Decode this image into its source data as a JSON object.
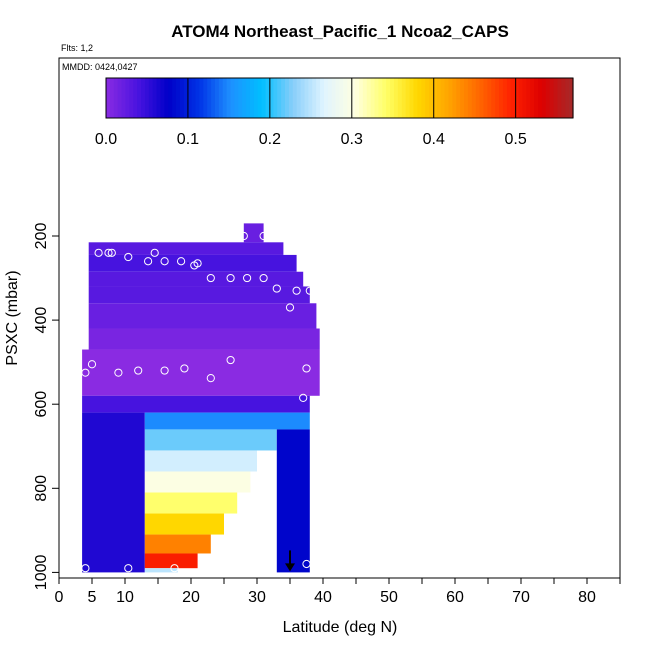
{
  "chart_data": {
    "type": "heatmap",
    "title": "ATOM4 Northeast_Pacific_1 Ncoa2_CAPS",
    "subtitle_flights": "Flts: 1,2",
    "subtitle_dates": "MMDD: 0424,0427",
    "xlabel": "Latitude (deg N)",
    "ylabel": "PSXC (mbar)",
    "xlim": [
      0,
      85
    ],
    "ylim": [
      1000,
      0
    ],
    "x_ticks": [
      0,
      5,
      10,
      20,
      30,
      40,
      50,
      60,
      70,
      80
    ],
    "y_ticks": [
      200,
      400,
      600,
      800,
      1000
    ],
    "colorbar": {
      "range": [
        0,
        0.57
      ],
      "ticks": [
        0.0,
        0.1,
        0.2,
        0.3,
        0.4,
        0.5
      ],
      "tick_labels": [
        "0.0",
        "0.1",
        "0.2",
        "0.3",
        "0.4",
        "0.5"
      ],
      "colors": [
        "#8a2be2",
        "#4b14e0",
        "#0000c8",
        "#0033e6",
        "#1e90ff",
        "#00bfff",
        "#87cefa",
        "#e0f4ff",
        "#ffffe0",
        "#ffff66",
        "#ffd700",
        "#ffa500",
        "#ff6600",
        "#ff2200",
        "#dd0000",
        "#a52a2a"
      ]
    },
    "cells": [
      {
        "lat0": 28,
        "lat1": 31,
        "p0": 170,
        "p1": 215,
        "v": 0.02
      },
      {
        "lat0": 4.5,
        "lat1": 34,
        "p0": 215,
        "p1": 245,
        "v": 0.03
      },
      {
        "lat0": 4.5,
        "lat1": 36,
        "p0": 245,
        "p1": 285,
        "v": 0.04
      },
      {
        "lat0": 4.5,
        "lat1": 37,
        "p0": 285,
        "p1": 320,
        "v": 0.03
      },
      {
        "lat0": 4.5,
        "lat1": 38,
        "p0": 320,
        "p1": 360,
        "v": 0.03
      },
      {
        "lat0": 4.5,
        "lat1": 39,
        "p0": 360,
        "p1": 420,
        "v": 0.02
      },
      {
        "lat0": 4.5,
        "lat1": 39.5,
        "p0": 420,
        "p1": 470,
        "v": 0.01
      },
      {
        "lat0": 3.5,
        "lat1": 39.5,
        "p0": 470,
        "p1": 580,
        "v": 0.0
      },
      {
        "lat0": 3.5,
        "lat1": 38,
        "p0": 580,
        "p1": 620,
        "v": 0.04
      },
      {
        "lat0": 3.5,
        "lat1": 13,
        "p0": 620,
        "p1": 1000,
        "v": 0.06
      },
      {
        "lat0": 13,
        "lat1": 38,
        "p0": 620,
        "p1": 660,
        "v": 0.15
      },
      {
        "lat0": 13,
        "lat1": 33,
        "p0": 660,
        "p1": 710,
        "v": 0.22
      },
      {
        "lat0": 13,
        "lat1": 30,
        "p0": 710,
        "p1": 760,
        "v": 0.26
      },
      {
        "lat0": 13,
        "lat1": 29,
        "p0": 760,
        "p1": 810,
        "v": 0.3
      },
      {
        "lat0": 13,
        "lat1": 27,
        "p0": 810,
        "p1": 860,
        "v": 0.34
      },
      {
        "lat0": 13,
        "lat1": 25,
        "p0": 860,
        "p1": 910,
        "v": 0.38
      },
      {
        "lat0": 13,
        "lat1": 23,
        "p0": 910,
        "p1": 955,
        "v": 0.44
      },
      {
        "lat0": 13,
        "lat1": 21,
        "p0": 955,
        "p1": 990,
        "v": 0.5
      },
      {
        "lat0": 13,
        "lat1": 18,
        "p0": 990,
        "p1": 1000,
        "v": 0.25
      },
      {
        "lat0": 33,
        "lat1": 38,
        "p0": 660,
        "p1": 1000,
        "v": 0.08
      }
    ],
    "points": [
      {
        "lat": 28,
        "p": 200
      },
      {
        "lat": 31,
        "p": 200
      },
      {
        "lat": 6,
        "p": 240
      },
      {
        "lat": 7.5,
        "p": 240
      },
      {
        "lat": 8,
        "p": 240
      },
      {
        "lat": 10.5,
        "p": 250
      },
      {
        "lat": 13.5,
        "p": 260
      },
      {
        "lat": 14.5,
        "p": 240
      },
      {
        "lat": 16,
        "p": 260
      },
      {
        "lat": 18.5,
        "p": 260
      },
      {
        "lat": 20.5,
        "p": 270
      },
      {
        "lat": 21,
        "p": 265
      },
      {
        "lat": 23,
        "p": 300
      },
      {
        "lat": 26,
        "p": 300
      },
      {
        "lat": 28.5,
        "p": 300
      },
      {
        "lat": 31,
        "p": 300
      },
      {
        "lat": 33,
        "p": 325
      },
      {
        "lat": 36,
        "p": 330
      },
      {
        "lat": 38,
        "p": 330
      },
      {
        "lat": 35,
        "p": 370
      },
      {
        "lat": 4,
        "p": 525
      },
      {
        "lat": 5,
        "p": 505
      },
      {
        "lat": 9,
        "p": 525
      },
      {
        "lat": 12,
        "p": 520
      },
      {
        "lat": 16,
        "p": 520
      },
      {
        "lat": 19,
        "p": 515
      },
      {
        "lat": 23,
        "p": 538
      },
      {
        "lat": 26,
        "p": 495
      },
      {
        "lat": 37.5,
        "p": 515
      },
      {
        "lat": 37,
        "p": 585
      },
      {
        "lat": 39,
        "p": 595
      },
      {
        "lat": 4,
        "p": 990
      },
      {
        "lat": 10.5,
        "p": 990
      },
      {
        "lat": 17.5,
        "p": 990
      },
      {
        "lat": 23.5,
        "p": 1000
      },
      {
        "lat": 37.5,
        "p": 980
      }
    ],
    "arrow_marker": {
      "lat": 35,
      "p": 1000
    }
  }
}
